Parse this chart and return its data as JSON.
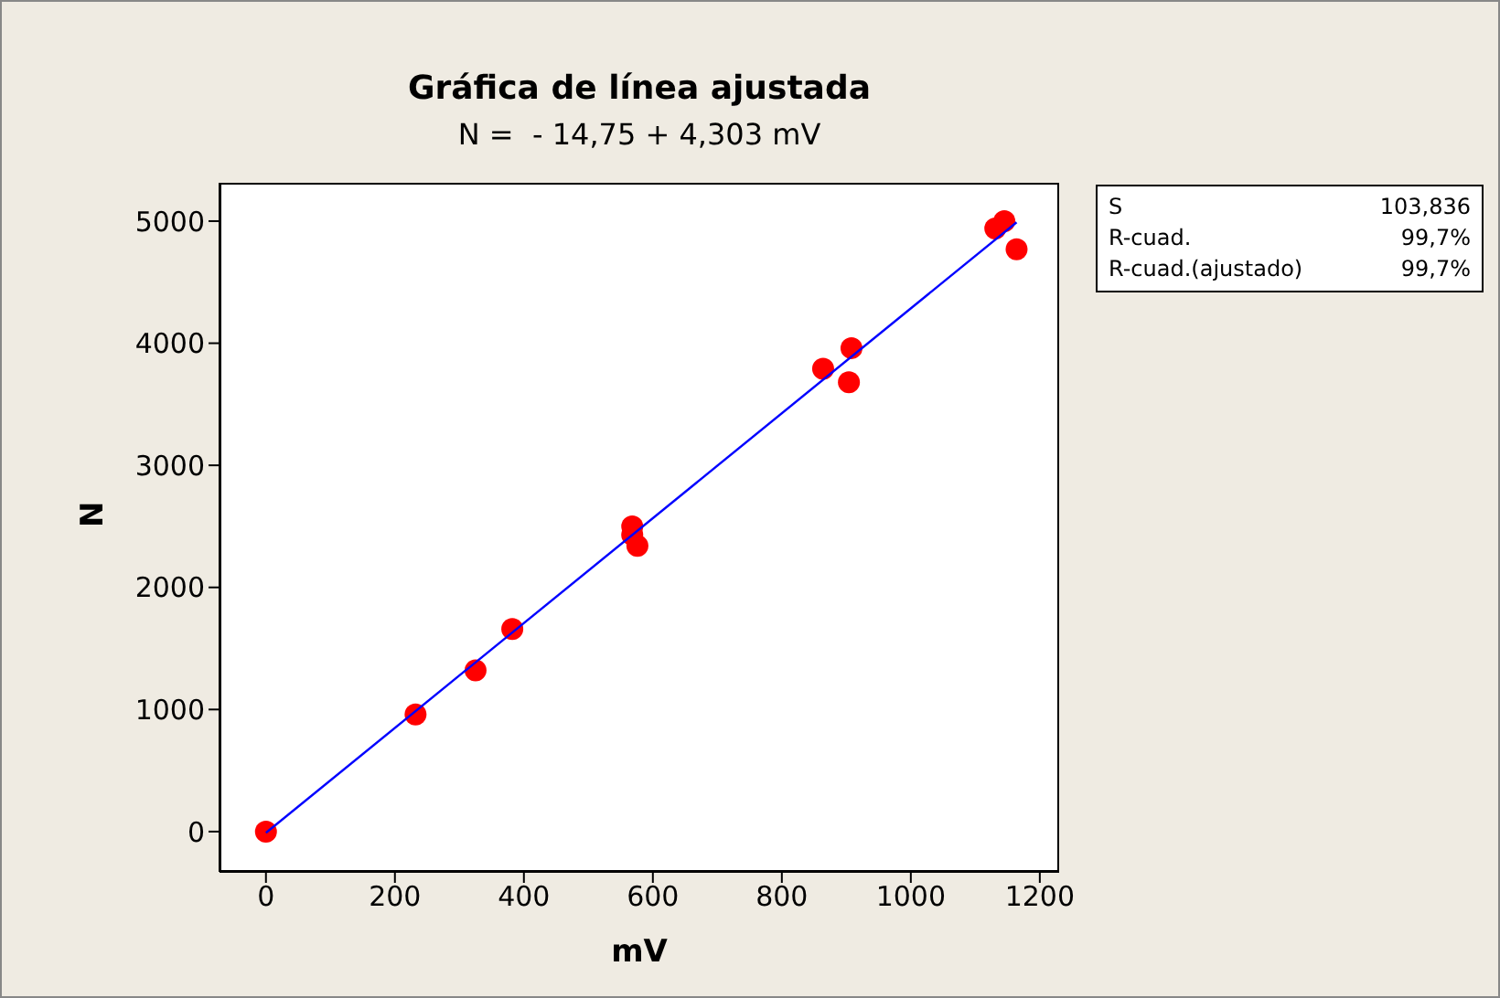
{
  "chart_data": {
    "type": "scatter",
    "title": "Gráfica de línea ajustada",
    "subtitle": "N =  - 14,75 + 4,303 mV",
    "xlabel": "mV",
    "ylabel": "N",
    "x": [
      0,
      232,
      325,
      382,
      568,
      568,
      576,
      864,
      908,
      904,
      1131,
      1145,
      1164
    ],
    "series": [
      {
        "color": "#ff0000",
        "values": [
          0,
          960,
          1320,
          1660,
          2500,
          2430,
          2340,
          3790,
          3960,
          3680,
          4940,
          5000,
          4770
        ]
      },
      {
        "type": "line",
        "color": "#0000ff",
        "marker": "none",
        "x": [
          0,
          1164
        ],
        "values": [
          -10,
          4990
        ]
      }
    ],
    "xlim": [
      -72,
      1230
    ],
    "ylim": [
      -330,
      5314
    ],
    "xticks": [
      0,
      200,
      400,
      600,
      800,
      1000,
      1200
    ],
    "yticks": [
      0,
      1000,
      2000,
      3000,
      4000,
      5000
    ],
    "marker": "circle",
    "grid": false,
    "legend": false,
    "annotations": [
      "S",
      "103,836",
      "R-cuad.",
      "99,7%",
      "R-cuad.(ajustado)",
      "99,7%"
    ]
  }
}
